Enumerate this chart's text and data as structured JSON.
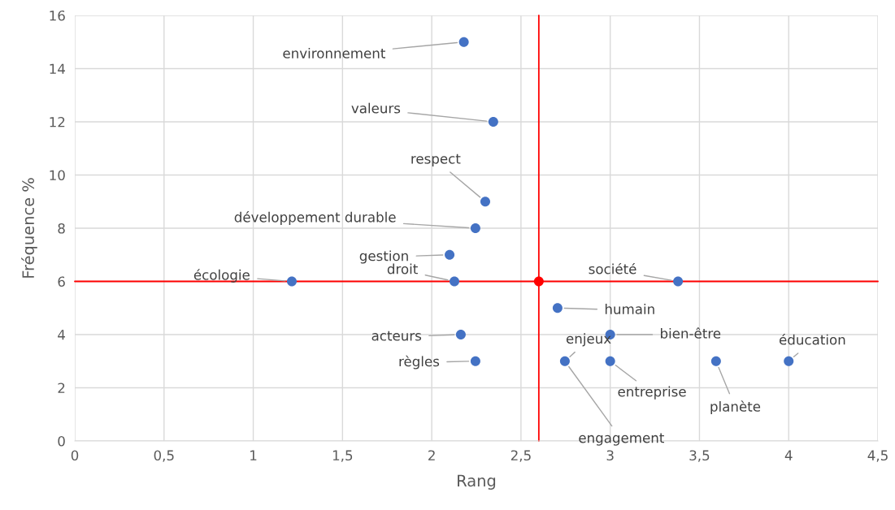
{
  "chart_data": {
    "type": "scatter",
    "xlabel": "Rang",
    "ylabel": "Fréquence %",
    "x": [
      2.18,
      2.345,
      2.3,
      2.245,
      2.1,
      1.216,
      2.127,
      3.38,
      2.705,
      2.163,
      3.0,
      2.245,
      2.746,
      3.0,
      3.593,
      4.0
    ],
    "series": [
      {
        "color": "#4472c4",
        "values": [
          15,
          12,
          9,
          8,
          7,
          6,
          6,
          6,
          5,
          4,
          4,
          3,
          3,
          3,
          3,
          3
        ]
      },
      {
        "color": "#ff0000",
        "x": [
          2.6
        ],
        "values": [
          6
        ]
      }
    ],
    "annotations": [
      {
        "text": "environnement",
        "x": 2.18,
        "y": 15
      },
      {
        "text": "valeurs",
        "x": 2.345,
        "y": 12
      },
      {
        "text": "respect",
        "x": 2.3,
        "y": 9
      },
      {
        "text": "développement durable",
        "x": 2.245,
        "y": 8
      },
      {
        "text": "gestion",
        "x": 2.1,
        "y": 7
      },
      {
        "text": "écologie",
        "x": 1.216,
        "y": 6
      },
      {
        "text": "droit",
        "x": 2.127,
        "y": 6
      },
      {
        "text": "société",
        "x": 3.38,
        "y": 6
      },
      {
        "text": "humain",
        "x": 2.705,
        "y": 5
      },
      {
        "text": "acteurs",
        "x": 2.163,
        "y": 4
      },
      {
        "text": "bien-être",
        "x": 3.0,
        "y": 4
      },
      {
        "text": "règles",
        "x": 2.245,
        "y": 3
      },
      {
        "text": "enjeux",
        "x": 2.746,
        "y": 3
      },
      {
        "text": "entreprise",
        "x": 3.0,
        "y": 3
      },
      {
        "text": "planète",
        "x": 3.593,
        "y": 3
      },
      {
        "text": "éducation",
        "x": 4.0,
        "y": 3
      },
      {
        "text": "engagement",
        "x": 2.746,
        "y": 3
      }
    ],
    "ref_lines": [
      {
        "axis": "x",
        "value": 2.6,
        "color": "#ff0000"
      },
      {
        "axis": "y",
        "value": 6,
        "color": "#ff0000"
      }
    ],
    "xlim": [
      0,
      4.5
    ],
    "ylim": [
      0,
      16
    ],
    "xticks": [
      0,
      {
        "value": 0.5,
        "label": "0,5"
      },
      1,
      {
        "value": 1.5,
        "label": "1,5"
      },
      2,
      {
        "value": 2.5,
        "label": "2,5"
      },
      3,
      {
        "value": 3.5,
        "label": "3,5"
      },
      4,
      {
        "value": 4.5,
        "label": "4,5"
      }
    ],
    "yticks": [
      0,
      2,
      4,
      6,
      8,
      10,
      12,
      14,
      16
    ],
    "grid": true,
    "marker": "circle",
    "legend": false
  }
}
